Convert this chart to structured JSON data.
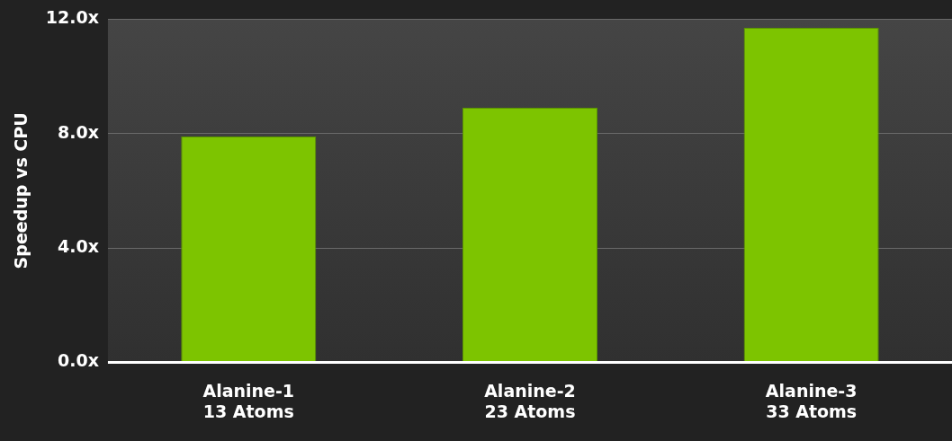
{
  "chart_data": {
    "type": "bar",
    "ylabel": "Speedup vs CPU",
    "categories": [
      "Alanine-1\n13 Atoms",
      "Alanine-2\n23 Atoms",
      "Alanine-3\n33 Atoms"
    ],
    "values": [
      7.9,
      8.9,
      11.7
    ],
    "color": "#7dc400",
    "ylim": [
      0,
      12
    ],
    "yticks": [
      {
        "value": 0,
        "label": "0.0x"
      },
      {
        "value": 4,
        "label": "4.0x"
      },
      {
        "value": 8,
        "label": "8.0x"
      },
      {
        "value": 12,
        "label": "12.0x"
      }
    ],
    "grid": "y",
    "legend": false
  }
}
